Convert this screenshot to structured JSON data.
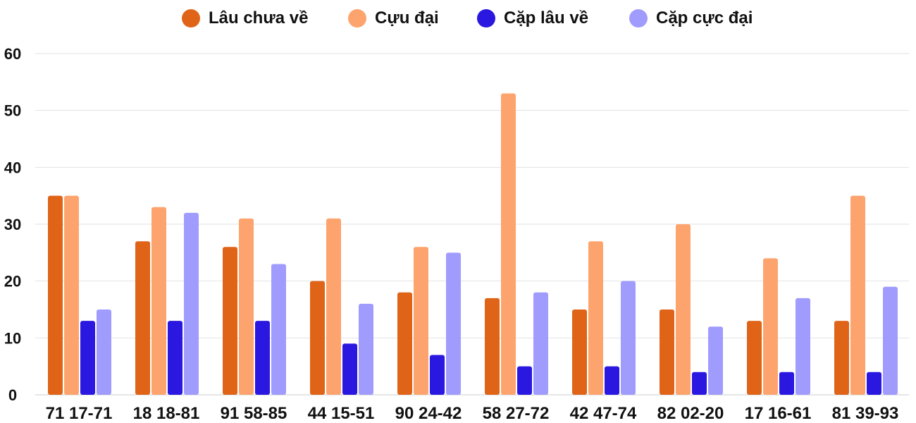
{
  "chart_data": {
    "type": "bar",
    "title": "",
    "xlabel": "",
    "ylabel": "",
    "ylim": [
      0,
      60
    ],
    "yticks": [
      0,
      10,
      20,
      30,
      40,
      50,
      60
    ],
    "grid": true,
    "legend_position": "top-center",
    "categories": [
      "71 17-71",
      "18 18-81",
      "91 58-85",
      "44 15-51",
      "90 24-42",
      "58 27-72",
      "42 47-74",
      "82 02-20",
      "17 16-61",
      "81 39-93"
    ],
    "series": [
      {
        "name": "Lâu chưa về",
        "color": "#e06418",
        "values": [
          35,
          27,
          26,
          20,
          18,
          17,
          15,
          15,
          13,
          13
        ]
      },
      {
        "name": "Cựu đại",
        "color": "#fda46e",
        "values": [
          35,
          33,
          31,
          31,
          26,
          53,
          27,
          30,
          24,
          35
        ]
      },
      {
        "name": "Cặp lâu về",
        "color": "#2a17e0",
        "values": [
          13,
          13,
          13,
          9,
          7,
          5,
          5,
          4,
          4,
          4
        ]
      },
      {
        "name": "Cặp cực đại",
        "color": "#a09cfd",
        "values": [
          15,
          32,
          23,
          16,
          25,
          18,
          20,
          12,
          17,
          19
        ]
      }
    ]
  }
}
